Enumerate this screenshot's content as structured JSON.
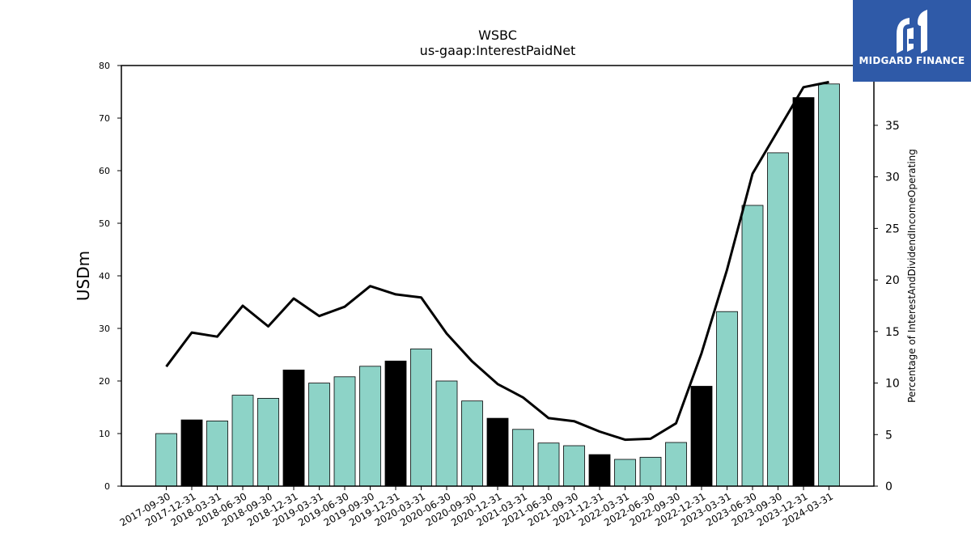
{
  "logo": {
    "text": "MIDGARD FINANCE",
    "color": "#2f5aa8"
  },
  "chart_data": {
    "type": "bar",
    "title": "WSBC",
    "subtitle": "us-gaap:InterestPaidNet",
    "ylabel": "USDm",
    "ylabel_right": "Percentage of InterestAndDividendIncomeOperating",
    "ylim": [
      0,
      80
    ],
    "ylim_right": [
      0,
      40.8
    ],
    "yticks": [
      0,
      10,
      20,
      30,
      40,
      50,
      60,
      70,
      80
    ],
    "yticks_right": [
      0,
      5,
      10,
      15,
      20,
      25,
      30,
      35
    ],
    "colors": {
      "bar": "#8dd3c7",
      "bar_q4": "#000000",
      "line": "#000000"
    },
    "categories": [
      "2017-09-30",
      "2017-12-31",
      "2018-03-31",
      "2018-06-30",
      "2018-09-30",
      "2018-12-31",
      "2019-03-31",
      "2019-06-30",
      "2019-09-30",
      "2019-12-31",
      "2020-03-31",
      "2020-06-30",
      "2020-09-30",
      "2020-12-31",
      "2021-03-31",
      "2021-06-30",
      "2021-09-30",
      "2021-12-31",
      "2022-03-31",
      "2022-06-30",
      "2022-09-30",
      "2022-12-31",
      "2023-03-31",
      "2023-06-30",
      "2023-09-30",
      "2023-12-31",
      "2024-03-31"
    ],
    "series": [
      {
        "type": "bar",
        "values": [
          10.0,
          12.6,
          12.4,
          17.3,
          16.7,
          22.1,
          19.6,
          20.8,
          22.8,
          23.8,
          26.1,
          20.0,
          16.2,
          12.9,
          10.8,
          8.2,
          7.7,
          6.0,
          5.1,
          5.5,
          8.3,
          19.0,
          33.2,
          53.4,
          63.4,
          73.9,
          76.5
        ]
      },
      {
        "type": "line",
        "axis": "right",
        "values": [
          11.6,
          14.9,
          14.5,
          17.5,
          15.5,
          18.2,
          16.5,
          17.4,
          19.4,
          18.6,
          18.3,
          14.8,
          12.1,
          9.9,
          8.6,
          6.6,
          6.3,
          5.3,
          4.5,
          4.6,
          6.1,
          12.9,
          21.0,
          30.3,
          34.5,
          38.7,
          39.2
        ]
      }
    ]
  }
}
